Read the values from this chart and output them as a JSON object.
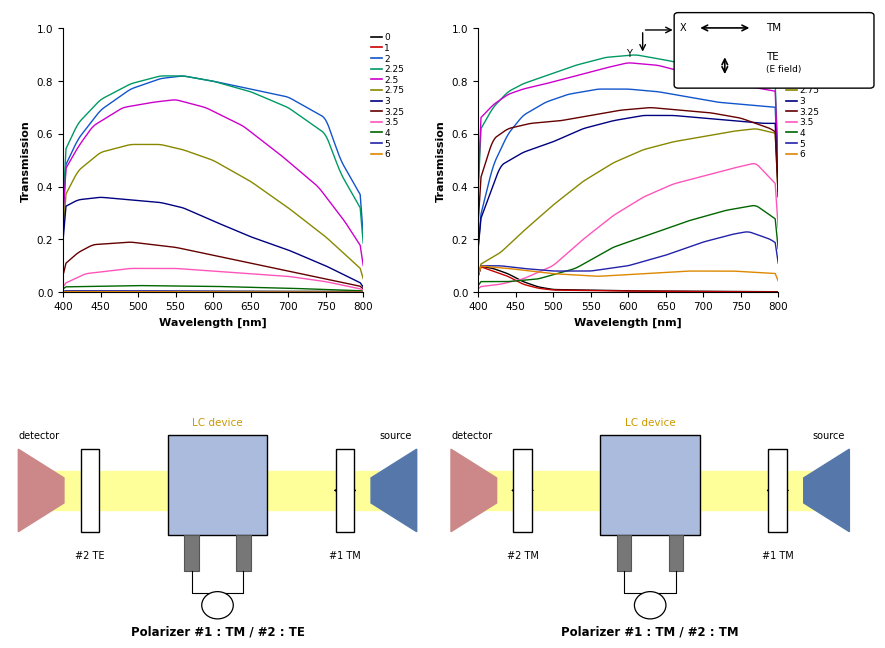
{
  "labels": [
    "0",
    "1",
    "2",
    "2.25",
    "2.5",
    "2.75",
    "3",
    "3.25",
    "3.5",
    "4",
    "5",
    "6"
  ],
  "curve_colors": {
    "0": "#000000",
    "1": "#cc0000",
    "2": "#1155cc",
    "2.25": "#009966",
    "2.5": "#cc00cc",
    "2.75": "#888800",
    "3": "#000080",
    "3.25": "#660000",
    "3.5": "#ff55bb",
    "4": "#006600",
    "5": "#2222aa",
    "6": "#dd8800"
  },
  "ylabel": "Transmission",
  "xlabel": "Wavelength [nm]",
  "title_left": "Polarizer #1 : TM / #2 : TE",
  "title_right": "Polarizer #1 : TM / #2 : TM"
}
